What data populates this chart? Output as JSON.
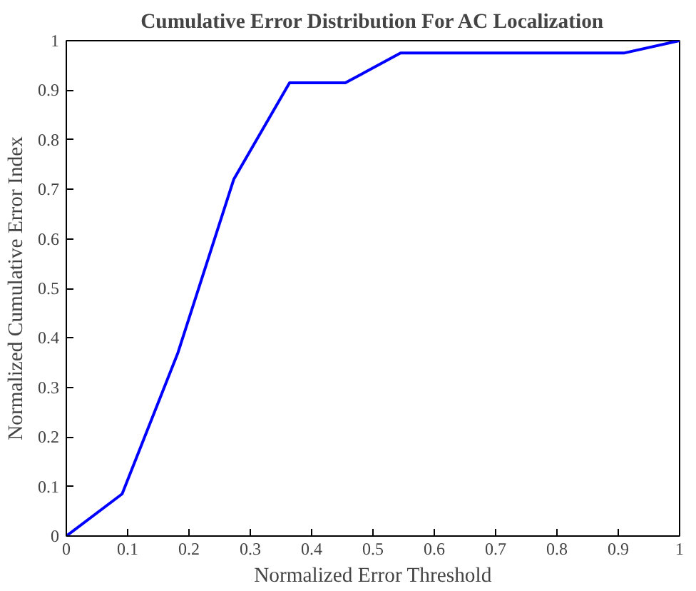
{
  "chart_data": {
    "type": "line",
    "title": "Cumulative Error Distribution For AC Localization",
    "xlabel": "Normalized Error Threshold",
    "ylabel": "Normalized Cumulative Error Index",
    "x": [
      0,
      0.091,
      0.182,
      0.273,
      0.364,
      0.455,
      0.545,
      0.636,
      0.727,
      0.818,
      0.909,
      1.0
    ],
    "series": [
      {
        "color": "#0000ff",
        "values": [
          0,
          0.085,
          0.37,
          0.72,
          0.915,
          0.915,
          0.975,
          0.975,
          0.975,
          0.975,
          0.975,
          1.0
        ]
      }
    ],
    "xlim": [
      0,
      1
    ],
    "xticks": [
      0,
      0.1,
      0.2,
      0.3,
      0.4,
      0.5,
      0.6,
      0.7,
      0.8,
      0.9,
      1
    ],
    "ylim": [
      0,
      1
    ],
    "yticks": [
      0,
      0.1,
      0.2,
      0.3,
      0.4,
      0.5,
      0.6,
      0.7,
      0.8,
      0.9,
      1
    ],
    "grid": false,
    "line_style": "solid"
  }
}
